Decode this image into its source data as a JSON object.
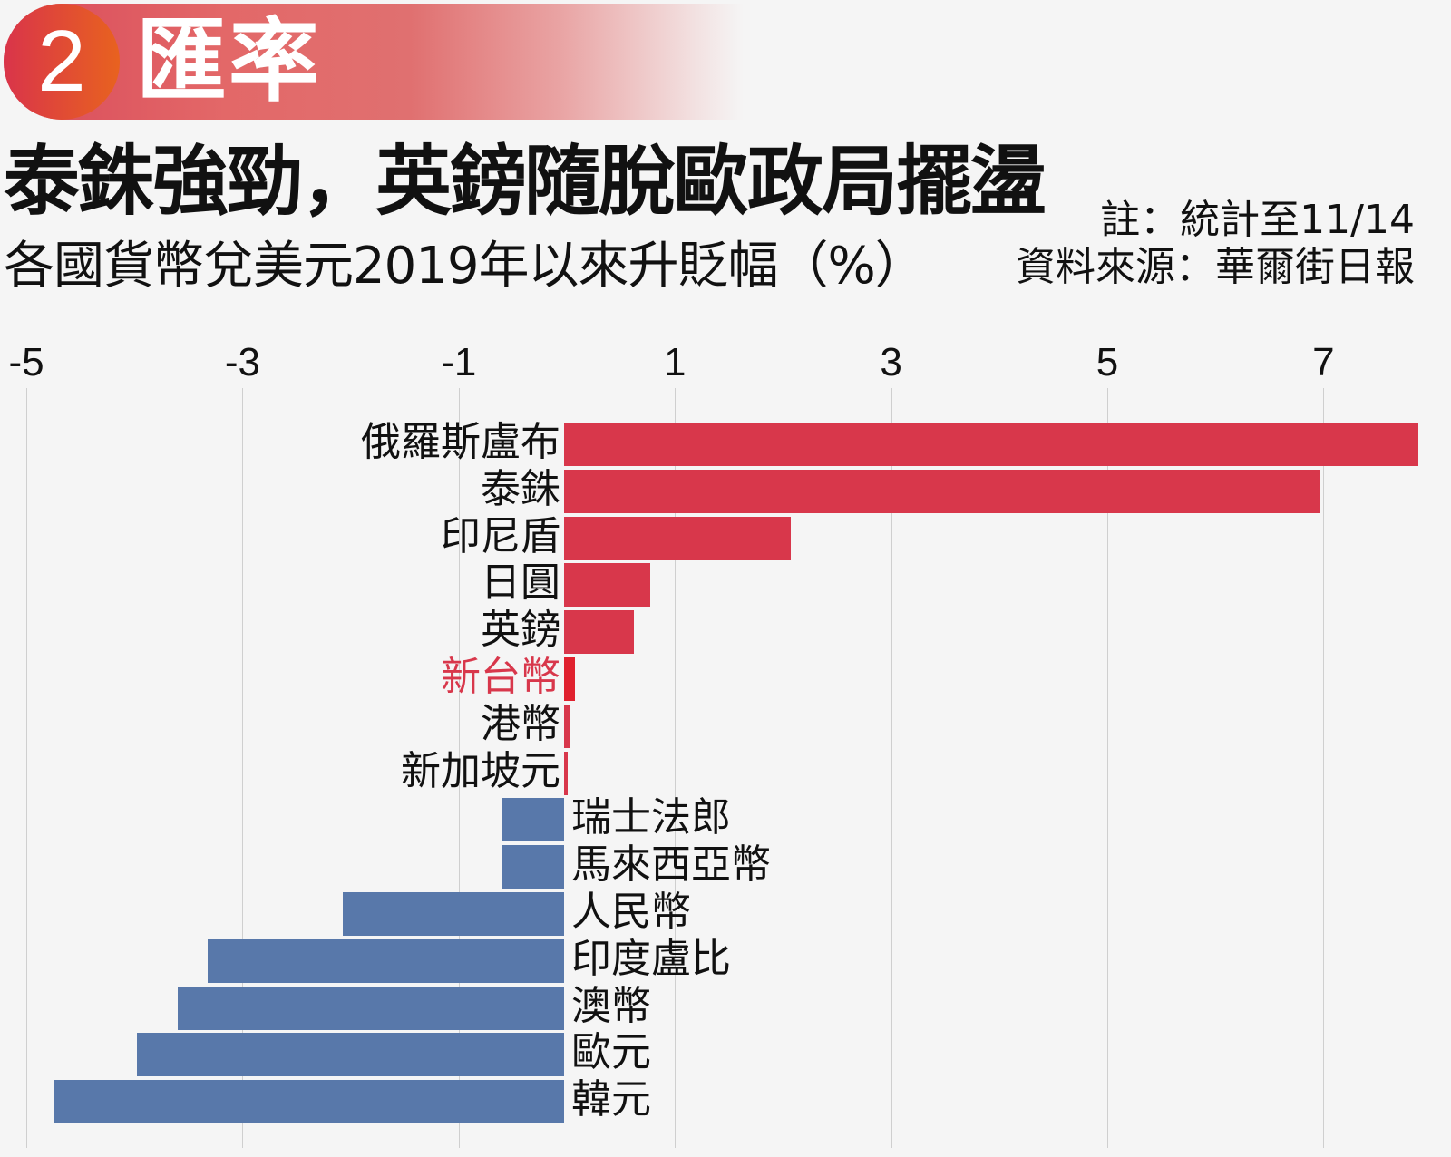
{
  "banner": {
    "number": "2",
    "label": "匯率"
  },
  "header": {
    "title": "泰銖強勁，英鎊隨脫歐政局擺盪",
    "subtitle": "各國貨幣兌美元2019年以來升貶幅（%）",
    "note": "註：統計至11/14",
    "source": "資料來源：華爾街日報"
  },
  "colors": {
    "positive": "#d8374b",
    "negative": "#5878aa",
    "highlight_label": "#d8374b",
    "highlight_bar": "#e0212e"
  },
  "chart_data": {
    "type": "bar",
    "orientation": "horizontal",
    "title": "泰銖強勁，英鎊隨脫歐政局擺盪",
    "subtitle": "各國貨幣兌美元2019年以來升貶幅（%）",
    "xlabel": "",
    "ylabel": "",
    "xlim": [
      -5.1,
      7.9
    ],
    "xticks": [
      -5,
      -3,
      -1,
      1,
      3,
      5,
      7
    ],
    "grid": true,
    "categories": [
      "俄羅斯盧布",
      "泰銖",
      "印尼盾",
      "日圓",
      "英鎊",
      "新台幣",
      "港幣",
      "新加坡元",
      "瑞士法郎",
      "馬來西亞幣",
      "人民幣",
      "印度盧比",
      "澳幣",
      "歐元",
      "韓元"
    ],
    "values": [
      7.9,
      7.0,
      2.1,
      0.8,
      0.65,
      0.1,
      0.06,
      0.03,
      -0.58,
      -0.58,
      -2.05,
      -3.3,
      -3.57,
      -3.95,
      -4.72
    ],
    "highlight": "新台幣",
    "annotations": [
      "註：統計至11/14",
      "資料來源：華爾街日報"
    ]
  }
}
